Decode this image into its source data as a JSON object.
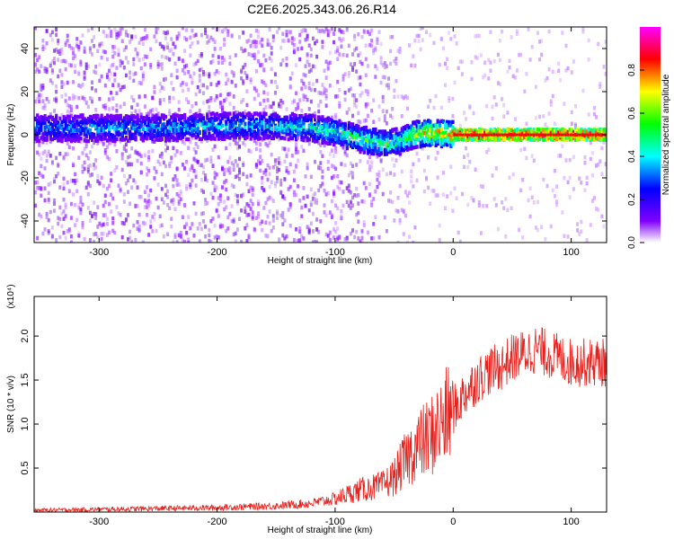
{
  "page_title": "C2E6.2025.343.06.26.R14",
  "chart_data": [
    {
      "type": "heatmap",
      "title": "",
      "xlabel": "Height of straight line (km)",
      "ylabel": "Frequency (Hz)",
      "xlim": [
        -355,
        130
      ],
      "ylim": [
        -50,
        50
      ],
      "xticks": [
        -300,
        -200,
        -100,
        0,
        100
      ],
      "yticks": [
        -40,
        -20,
        0,
        20,
        40
      ],
      "colorbar": {
        "label": "Normalized spectral amplitude",
        "range": [
          0,
          1
        ],
        "ticks": [
          "0.0",
          "0.2",
          "0.4",
          "0.6",
          "0.8"
        ],
        "colors": [
          "#ffffff",
          "#8000ff",
          "#0000ff",
          "#00ffff",
          "#00ff00",
          "#ffff00",
          "#ff0000",
          "#ff00ff"
        ]
      },
      "ridge": {
        "heights": [
          -355,
          -300,
          -250,
          -200,
          -150,
          -120,
          -100,
          -80,
          -60,
          -45,
          -35,
          -20,
          0,
          50,
          130
        ],
        "center_frequency_hz": [
          3,
          3,
          3,
          4,
          4,
          3,
          1,
          -2,
          -4,
          -3,
          0,
          1,
          0,
          0,
          0
        ],
        "peak_amplitude": [
          0.35,
          0.4,
          0.4,
          0.45,
          0.45,
          0.5,
          0.55,
          0.6,
          0.6,
          0.55,
          0.7,
          0.85,
          0.95,
          0.95,
          0.95
        ]
      }
    },
    {
      "type": "line",
      "title": "",
      "xlabel": "Height of straight line (km)",
      "ylabel": "SNR (10 * v/v)",
      "y_multiplier": "(x10⁴)",
      "xlim": [
        -355,
        130
      ],
      "ylim": [
        0,
        2.45
      ],
      "xticks": [
        -300,
        -200,
        -100,
        0,
        100
      ],
      "yticks": [
        0.5,
        1.0,
        1.5,
        2.0
      ],
      "color": "#e8201c",
      "series": [
        {
          "name": "",
          "x": [
            -355,
            -300,
            -250,
            -200,
            -150,
            -120,
            -100,
            -80,
            -60,
            -50,
            -40,
            -30,
            -20,
            -10,
            0,
            10,
            20,
            30,
            40,
            50,
            60,
            70,
            80,
            90,
            100,
            110,
            120,
            130
          ],
          "y": [
            0.02,
            0.03,
            0.04,
            0.05,
            0.07,
            0.1,
            0.15,
            0.25,
            0.3,
            0.4,
            0.6,
            0.75,
            0.85,
            1.0,
            1.15,
            1.35,
            1.5,
            1.6,
            1.65,
            1.75,
            1.8,
            1.85,
            1.8,
            1.75,
            1.7,
            1.7,
            1.7,
            1.7
          ]
        }
      ]
    }
  ]
}
